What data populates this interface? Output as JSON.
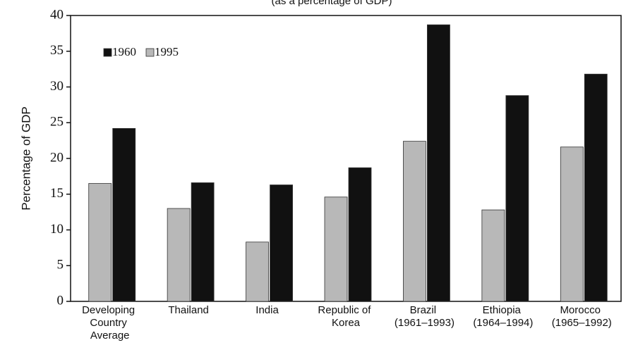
{
  "chart_data": {
    "type": "bar",
    "subtitle": "(as a percentage of GDP)",
    "y_label": "Percentage of GDP",
    "categories": [
      "Developing Country Average",
      "Thailand",
      "India",
      "Republic of Korea",
      "Brazil (1961–1993)",
      "Ethiopia (1964–1994)",
      "Morocco (1965–1992)"
    ],
    "series": [
      {
        "name": "1960",
        "color": "#111111",
        "values": [
          24.2,
          16.6,
          16.3,
          18.7,
          38.7,
          28.8,
          31.8
        ]
      },
      {
        "name": "1995",
        "color": "#b8b8b8",
        "values": [
          16.5,
          13.0,
          8.3,
          14.6,
          22.4,
          12.8,
          21.6
        ]
      }
    ],
    "ylim": [
      0,
      40
    ],
    "yticks": [
      0,
      5,
      10,
      15,
      20,
      25,
      30,
      35,
      40
    ],
    "legend": "top-left"
  }
}
